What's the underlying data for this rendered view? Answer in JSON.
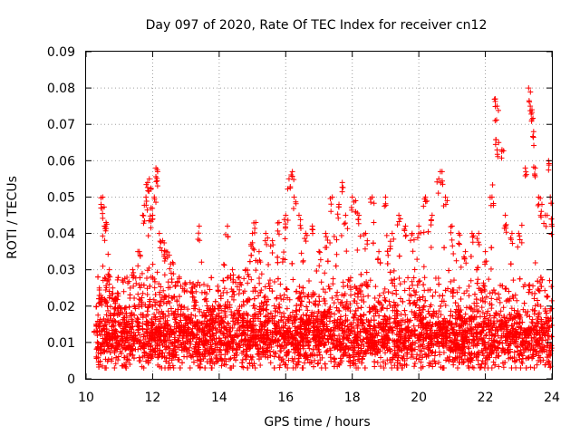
{
  "chart_data": {
    "type": "scatter",
    "title": "Day 097 of 2020, Rate Of TEC Index for receiver cn12",
    "xlabel": "GPS time / hours",
    "ylabel": "ROTI / TECUs",
    "xlim": [
      10,
      24
    ],
    "ylim": [
      0,
      0.09
    ],
    "x_ticks": [
      "10",
      "12",
      "14",
      "16",
      "18",
      "20",
      "22",
      "24"
    ],
    "y_ticks": [
      "0",
      "0.01",
      "0.02",
      "0.03",
      "0.04",
      "0.05",
      "0.06",
      "0.07",
      "0.08",
      "0.09"
    ],
    "grid": true,
    "marker": "+",
    "series": [
      {
        "name": "ROTI",
        "color": "#ff0000",
        "x": [
          10.3,
          10.4,
          10.45,
          10.5,
          10.55,
          10.6,
          10.7,
          10.8,
          10.9,
          11.0,
          11.2,
          11.4,
          11.6,
          11.7,
          11.8,
          11.85,
          11.9,
          11.95,
          12.0,
          12.05,
          12.1,
          12.15,
          12.2,
          12.3,
          12.4,
          12.5,
          12.6,
          12.8,
          13.0,
          13.2,
          13.4,
          13.6,
          13.8,
          14.0,
          14.2,
          14.25,
          14.4,
          14.6,
          14.8,
          15.0,
          15.1,
          15.2,
          15.4,
          15.6,
          15.8,
          16.0,
          16.1,
          16.2,
          16.25,
          16.4,
          16.6,
          16.8,
          17.0,
          17.2,
          17.4,
          17.6,
          17.7,
          17.8,
          18.0,
          18.1,
          18.2,
          18.4,
          18.6,
          18.8,
          19.0,
          19.2,
          19.4,
          19.6,
          19.8,
          20.0,
          20.2,
          20.4,
          20.6,
          20.7,
          20.8,
          21.0,
          21.2,
          21.4,
          21.6,
          21.8,
          22.0,
          22.2,
          22.3,
          22.35,
          22.4,
          22.5,
          22.6,
          22.8,
          23.0,
          23.2,
          23.3,
          23.35,
          23.4,
          23.45,
          23.5,
          23.6,
          23.7,
          23.8,
          23.9,
          24.0
        ],
        "y": [
          0.015,
          0.025,
          0.048,
          0.05,
          0.042,
          0.043,
          0.03,
          0.025,
          0.022,
          0.02,
          0.018,
          0.03,
          0.035,
          0.045,
          0.05,
          0.054,
          0.055,
          0.047,
          0.045,
          0.05,
          0.058,
          0.057,
          0.04,
          0.038,
          0.035,
          0.034,
          0.032,
          0.028,
          0.026,
          0.024,
          0.042,
          0.022,
          0.02,
          0.018,
          0.02,
          0.042,
          0.03,
          0.028,
          0.03,
          0.04,
          0.043,
          0.035,
          0.04,
          0.038,
          0.043,
          0.045,
          0.055,
          0.057,
          0.05,
          0.045,
          0.04,
          0.042,
          0.035,
          0.04,
          0.05,
          0.048,
          0.054,
          0.045,
          0.05,
          0.049,
          0.045,
          0.04,
          0.05,
          0.035,
          0.05,
          0.04,
          0.045,
          0.042,
          0.04,
          0.042,
          0.05,
          0.045,
          0.055,
          0.057,
          0.05,
          0.042,
          0.04,
          0.035,
          0.04,
          0.04,
          0.035,
          0.05,
          0.077,
          0.075,
          0.065,
          0.063,
          0.045,
          0.04,
          0.04,
          0.058,
          0.08,
          0.075,
          0.074,
          0.068,
          0.058,
          0.05,
          0.048,
          0.045,
          0.06,
          0.042
        ]
      }
    ],
    "envelope": {
      "description_hours": [
        10.3,
        24
      ],
      "baseline_center": 0.011,
      "baseline_spread": 0.005
    }
  }
}
